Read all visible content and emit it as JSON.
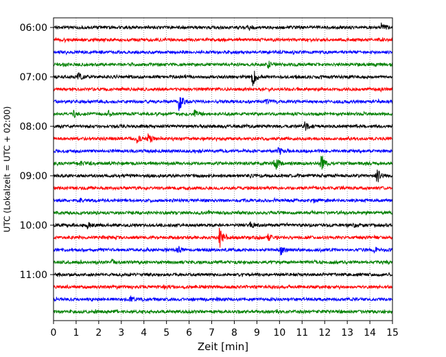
{
  "chart_data": {
    "type": "line",
    "title": "",
    "xlabel": "Zeit  [min]",
    "ylabel": "UTC (Lokalzeit = UTC + 02:00)",
    "xlim": [
      0,
      15
    ],
    "x_ticks": [
      "0",
      "1",
      "2",
      "3",
      "4",
      "5",
      "6",
      "7",
      "8",
      "9",
      "10",
      "11",
      "12",
      "13",
      "14",
      "15"
    ],
    "y_tick_labels": [
      "06:00",
      "07:00",
      "08:00",
      "09:00",
      "10:00",
      "11:00"
    ],
    "grid": "vertical dotted",
    "trace_interval_minutes": 15,
    "color_cycle": [
      "#000000",
      "#ff0000",
      "#0000ff",
      "#008000"
    ],
    "series": [
      {
        "start": "06:00",
        "events": [
          {
            "t": 8.6,
            "a": 0.18
          },
          {
            "t": 14.5,
            "a": 0.4
          }
        ]
      },
      {
        "start": "06:15",
        "events": []
      },
      {
        "start": "06:30",
        "events": [
          {
            "t": 1.9,
            "a": 0.15
          }
        ]
      },
      {
        "start": "06:45",
        "events": [
          {
            "t": 9.5,
            "a": 0.3
          }
        ]
      },
      {
        "start": "07:00",
        "events": [
          {
            "t": 1.1,
            "a": 0.35
          },
          {
            "t": 8.8,
            "a": 0.95
          }
        ]
      },
      {
        "start": "07:15",
        "events": []
      },
      {
        "start": "07:30",
        "events": [
          {
            "t": 5.55,
            "a": 1.0
          },
          {
            "t": 9.4,
            "a": 0.15
          }
        ]
      },
      {
        "start": "07:45",
        "events": [
          {
            "t": 0.9,
            "a": 0.3
          },
          {
            "t": 2.4,
            "a": 0.4
          },
          {
            "t": 6.25,
            "a": 0.45
          }
        ]
      },
      {
        "start": "08:00",
        "events": [
          {
            "t": 11.1,
            "a": 0.5
          }
        ]
      },
      {
        "start": "08:15",
        "events": [
          {
            "t": 3.7,
            "a": 0.45
          },
          {
            "t": 4.2,
            "a": 0.45
          }
        ]
      },
      {
        "start": "08:30",
        "events": [
          {
            "t": 9.95,
            "a": 0.3
          }
        ]
      },
      {
        "start": "08:45",
        "events": [
          {
            "t": 1.2,
            "a": 0.2
          },
          {
            "t": 9.8,
            "a": 0.75
          },
          {
            "t": 11.85,
            "a": 0.85
          }
        ]
      },
      {
        "start": "09:00",
        "events": [
          {
            "t": 14.3,
            "a": 0.9
          }
        ]
      },
      {
        "start": "09:15",
        "events": []
      },
      {
        "start": "09:30",
        "events": [
          {
            "t": 1.2,
            "a": 0.15
          },
          {
            "t": 11.5,
            "a": 0.15
          }
        ]
      },
      {
        "start": "09:45",
        "events": []
      },
      {
        "start": "10:00",
        "events": [
          {
            "t": 1.5,
            "a": 0.25
          },
          {
            "t": 8.7,
            "a": 0.25
          },
          {
            "t": 13.3,
            "a": 0.2
          }
        ]
      },
      {
        "start": "10:15",
        "events": [
          {
            "t": 7.35,
            "a": 1.0
          },
          {
            "t": 9.5,
            "a": 0.3
          }
        ]
      },
      {
        "start": "10:30",
        "events": [
          {
            "t": 5.5,
            "a": 0.35
          },
          {
            "t": 10.05,
            "a": 0.45
          },
          {
            "t": 14.2,
            "a": 0.3
          }
        ]
      },
      {
        "start": "10:45",
        "events": [
          {
            "t": 2.6,
            "a": 0.2
          }
        ]
      },
      {
        "start": "11:00",
        "events": []
      },
      {
        "start": "11:15",
        "events": [
          {
            "t": 4.9,
            "a": 0.15
          }
        ]
      },
      {
        "start": "11:30",
        "events": [
          {
            "t": 3.4,
            "a": 0.25
          }
        ]
      },
      {
        "start": "11:45",
        "events": []
      }
    ]
  }
}
